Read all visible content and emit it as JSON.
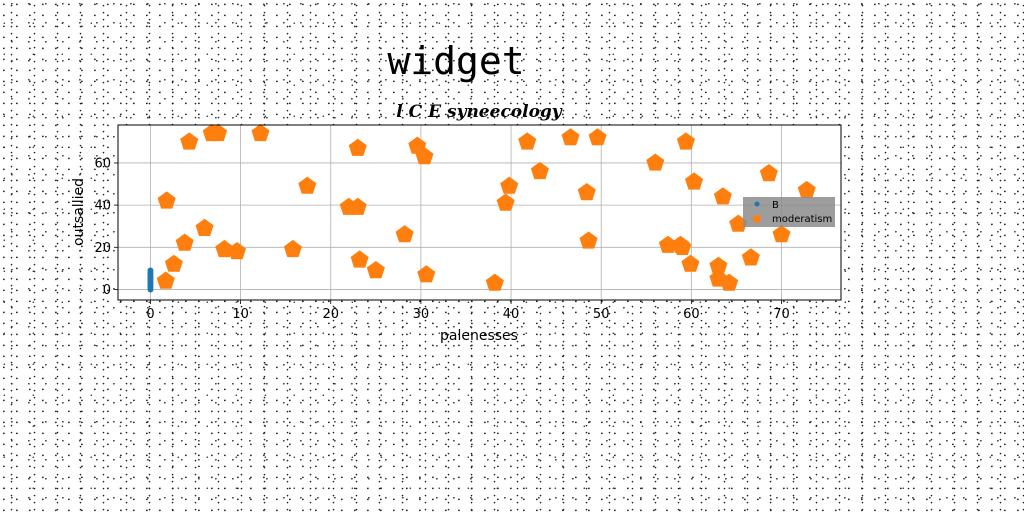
{
  "chart_data": {
    "type": "scatter",
    "suptitle": "widget",
    "title": "l C E syneecology",
    "xlabel": "palenesses",
    "ylabel": "outsallied",
    "xlim": [
      -3.6,
      76.6
    ],
    "ylim": [
      -5,
      78
    ],
    "xticks": [
      0,
      10,
      20,
      30,
      40,
      50,
      60,
      70
    ],
    "yticks": [
      0,
      20,
      40,
      60
    ],
    "grid": true,
    "legend_position": "right",
    "series": [
      {
        "name": "B",
        "color": "#1f77b4",
        "marker": "circle",
        "x": [
          0,
          0,
          0,
          0,
          0,
          0,
          0,
          0,
          0,
          0
        ],
        "y": [
          0,
          1,
          2,
          3,
          4,
          5,
          6,
          7,
          8,
          9
        ]
      },
      {
        "name": "moderatism",
        "color": "#ff7f0e",
        "marker": "pentagon",
        "x": [
          1.7,
          1.8,
          2.6,
          3.8,
          4.3,
          6.0,
          6.8,
          7.5,
          8.2,
          9.6,
          12.2,
          15.8,
          17.4,
          22.0,
          23.0,
          23.0,
          23.2,
          25.0,
          28.2,
          29.6,
          30.4,
          30.6,
          38.2,
          39.4,
          39.8,
          41.8,
          43.2,
          46.6,
          48.4,
          48.6,
          49.6,
          56.0,
          57.4,
          58.8,
          59.0,
          59.4,
          59.9,
          60.3,
          63.0,
          63.0,
          63.5,
          64.2,
          65.2,
          66.6,
          68.6,
          70.0,
          72.8
        ],
        "y": [
          4,
          42,
          12,
          22,
          70,
          29,
          74,
          74,
          19,
          18,
          74,
          19,
          49,
          39,
          67,
          39,
          14,
          9,
          26,
          68,
          63,
          7,
          3,
          41,
          49,
          70,
          56,
          72,
          46,
          23,
          72,
          60,
          21,
          21,
          20,
          70,
          12,
          51,
          11,
          5,
          44,
          3,
          31,
          15,
          55,
          26,
          47
        ]
      }
    ]
  }
}
